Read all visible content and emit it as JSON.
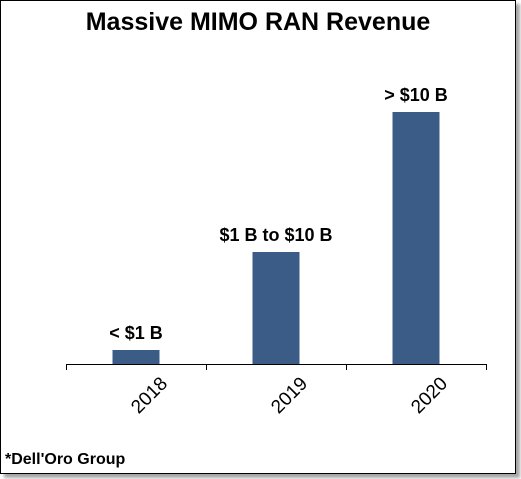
{
  "chart_data": {
    "type": "bar",
    "title": "Massive MIMO RAN Revenue",
    "categories": [
      "2018",
      "2019",
      "2020"
    ],
    "values": [
      0.5,
      4.0,
      9.0
    ],
    "data_labels": [
      "< $1 B",
      "$1 B to $10 B",
      "> $10 B"
    ],
    "value_unit": "USD billions (relative, qualitative ranges)",
    "xlabel": "",
    "ylabel": "",
    "ylim": [
      0,
      10
    ],
    "grid": false,
    "legend": "none",
    "bar_color": "#3B5C87",
    "x_tick_rotation": -45
  },
  "footer": {
    "source": "*Dell'Oro Group"
  }
}
